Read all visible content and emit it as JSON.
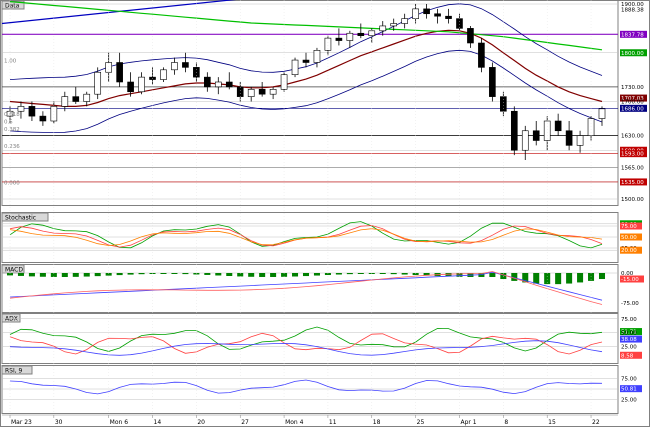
{
  "colors": {
    "background": "#ffffff",
    "panel_border": "#808080",
    "grid": "#c0c0c0",
    "candle_up": "#ffffff",
    "candle_down": "#000000",
    "bollinger": "#000080",
    "ma_red": "#800000",
    "ma_green": "#00c000",
    "trend_blue": "#0000c0",
    "purple_line": "#8000c0",
    "macd_bar": "#008000",
    "macd_line": "#4040ff",
    "signal_line": "#ff6060"
  },
  "x_labels": [
    "Mar 23",
    "30",
    "Mon 6",
    "14",
    "20",
    "27",
    "Mon 4",
    "11",
    "18",
    "25",
    "Apr 1",
    "8",
    "15",
    "22"
  ],
  "panels": [
    {
      "title": "Data",
      "right_labels": [
        "1900.00",
        "1888.38",
        "1837.78",
        "1800.00",
        "1730.00",
        "1707.03",
        "1700.00",
        "1686.00",
        "1630.00",
        "1600.00",
        "1593.00",
        "1565.00",
        "1535.00",
        "1500.00"
      ],
      "left_labels": [
        "1.00",
        "0.618",
        "0.5",
        "0.382",
        "0.236",
        "0.000"
      ]
    },
    {
      "title": "Stochastic",
      "right_labels": [
        "80.00",
        "75.00",
        "50.00",
        "25.00",
        "20.00"
      ]
    },
    {
      "title": "MACD",
      "right_labels": [
        "0.00",
        "-15.00",
        "-75.00"
      ]
    },
    {
      "title": "ADX",
      "right_labels": [
        "75.00",
        "51.71",
        "50.00",
        "38.08",
        "25.00",
        "8.58"
      ]
    },
    {
      "title": "RSI, 9",
      "right_labels": [
        "75.00",
        "50.81",
        "25.00"
      ]
    }
  ],
  "chart_data": {
    "type": "candlestick",
    "y_range": [
      1500,
      1900
    ],
    "candles": [
      [
        1670,
        1690,
        1655,
        1680
      ],
      [
        1680,
        1700,
        1665,
        1690
      ],
      [
        1690,
        1700,
        1660,
        1670
      ],
      [
        1670,
        1680,
        1650,
        1660
      ],
      [
        1660,
        1700,
        1655,
        1690
      ],
      [
        1690,
        1720,
        1680,
        1710
      ],
      [
        1710,
        1730,
        1695,
        1700
      ],
      [
        1700,
        1720,
        1690,
        1715
      ],
      [
        1715,
        1770,
        1705,
        1760
      ],
      [
        1760,
        1800,
        1740,
        1780
      ],
      [
        1780,
        1800,
        1730,
        1740
      ],
      [
        1740,
        1760,
        1710,
        1720
      ],
      [
        1720,
        1760,
        1715,
        1750
      ],
      [
        1750,
        1770,
        1735,
        1745
      ],
      [
        1745,
        1770,
        1740,
        1765
      ],
      [
        1765,
        1790,
        1755,
        1780
      ],
      [
        1780,
        1800,
        1760,
        1770
      ],
      [
        1770,
        1780,
        1740,
        1750
      ],
      [
        1750,
        1760,
        1720,
        1730
      ],
      [
        1730,
        1750,
        1715,
        1740
      ],
      [
        1740,
        1760,
        1725,
        1730
      ],
      [
        1730,
        1740,
        1700,
        1710
      ],
      [
        1710,
        1730,
        1700,
        1725
      ],
      [
        1725,
        1740,
        1710,
        1715
      ],
      [
        1715,
        1730,
        1705,
        1725
      ],
      [
        1725,
        1760,
        1720,
        1755
      ],
      [
        1755,
        1790,
        1750,
        1785
      ],
      [
        1785,
        1800,
        1770,
        1780
      ],
      [
        1780,
        1810,
        1770,
        1805
      ],
      [
        1805,
        1835,
        1795,
        1830
      ],
      [
        1830,
        1850,
        1815,
        1825
      ],
      [
        1825,
        1845,
        1810,
        1840
      ],
      [
        1840,
        1860,
        1830,
        1835
      ],
      [
        1835,
        1850,
        1820,
        1845
      ],
      [
        1845,
        1865,
        1835,
        1855
      ],
      [
        1855,
        1870,
        1845,
        1860
      ],
      [
        1860,
        1880,
        1850,
        1870
      ],
      [
        1870,
        1900,
        1860,
        1890
      ],
      [
        1890,
        1900,
        1870,
        1880
      ],
      [
        1880,
        1890,
        1860,
        1875
      ],
      [
        1875,
        1890,
        1860,
        1870
      ],
      [
        1870,
        1880,
        1845,
        1850
      ],
      [
        1850,
        1855,
        1810,
        1820
      ],
      [
        1820,
        1830,
        1760,
        1770
      ],
      [
        1770,
        1780,
        1700,
        1710
      ],
      [
        1710,
        1720,
        1670,
        1680
      ],
      [
        1680,
        1690,
        1590,
        1600
      ],
      [
        1600,
        1650,
        1580,
        1640
      ],
      [
        1640,
        1660,
        1610,
        1620
      ],
      [
        1620,
        1670,
        1600,
        1660
      ],
      [
        1660,
        1675,
        1630,
        1640
      ],
      [
        1640,
        1660,
        1600,
        1610
      ],
      [
        1610,
        1640,
        1595,
        1630
      ],
      [
        1630,
        1670,
        1620,
        1665
      ],
      [
        1665,
        1690,
        1650,
        1685
      ]
    ],
    "series": [
      {
        "name": "",
        "color": "#800000",
        "values": [
          1700,
          1698,
          1696,
          1694,
          1692,
          1690,
          1690,
          1692,
          1698,
          1706,
          1712,
          1716,
          1720,
          1724,
          1728,
          1732,
          1736,
          1738,
          1738,
          1736,
          1734,
          1730,
          1728,
          1728,
          1730,
          1734,
          1740,
          1746,
          1754,
          1764,
          1774,
          1784,
          1794,
          1802,
          1810,
          1818,
          1826,
          1834,
          1840,
          1844,
          1846,
          1845,
          1840,
          1830,
          1816,
          1800,
          1784,
          1768,
          1754,
          1742,
          1730,
          1720,
          1712,
          1706,
          1700
        ]
      },
      {
        "name": "",
        "color": "#00c000",
        "values": [
          1905,
          1903,
          1901,
          1899,
          1897,
          1895,
          1893,
          1891,
          1889,
          1887,
          1885,
          1883,
          1881,
          1879,
          1877,
          1875,
          1873,
          1871,
          1869,
          1867,
          1865,
          1863,
          1861,
          1860,
          1859,
          1858,
          1857,
          1856,
          1855,
          1854,
          1853,
          1852,
          1851,
          1850,
          1849,
          1848,
          1847,
          1846,
          1845,
          1844,
          1843,
          1841,
          1839,
          1837,
          1835,
          1833,
          1830,
          1827,
          1824,
          1821,
          1818,
          1815,
          1812,
          1809,
          1806
        ]
      }
    ],
    "horizontal_levels": [
      1837.78,
      1730.0,
      1686.0,
      1630.0,
      1593.0,
      1565.0,
      1535.0
    ]
  }
}
